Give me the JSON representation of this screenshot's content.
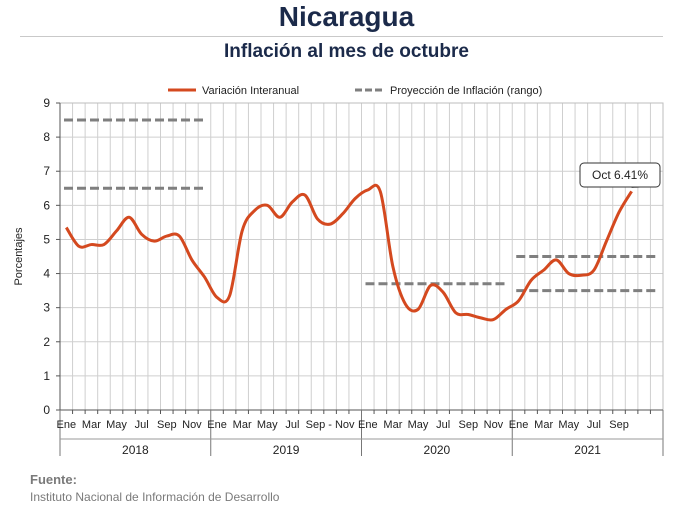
{
  "header": {
    "title": "Nicaragua",
    "subtitle": "Inflación al mes de octubre"
  },
  "source": {
    "label": "Fuente:",
    "text": "Instituto Nacional de Información de  Desarrollo"
  },
  "colors": {
    "series": "#d4491f",
    "projection": "#7f7f7f",
    "grid": "#cfcfcf",
    "axis": "#555555",
    "title": "#1b2a4a"
  },
  "chart_data": {
    "type": "line",
    "ylabel": "Porcentajes",
    "ylim": [
      0,
      9
    ],
    "yticks": [
      0,
      1,
      2,
      3,
      4,
      5,
      6,
      7,
      8,
      9
    ],
    "grid": true,
    "legend_position": "top",
    "x_tick_labels": [
      "Ene",
      "Mar",
      "May",
      "Jul",
      "Sep",
      "Nov",
      "Ene",
      "Mar",
      "May",
      "Jul",
      "Sep - Nov",
      "Ene",
      "Mar",
      "May",
      "Jul",
      "Sep",
      "Nov",
      "Ene",
      "Mar",
      "May",
      "Jul",
      "Sep"
    ],
    "years": [
      "2018",
      "2019",
      "2020",
      "2021"
    ],
    "series": [
      {
        "name": "Variación Interanual",
        "style": "solid",
        "values": [
          5.35,
          4.8,
          4.85,
          4.85,
          5.25,
          5.65,
          5.15,
          4.95,
          5.1,
          5.1,
          4.4,
          3.9,
          3.3,
          3.35,
          5.25,
          5.85,
          6.0,
          5.65,
          6.1,
          6.3,
          5.6,
          5.45,
          5.75,
          6.2,
          6.45,
          6.4,
          4.2,
          3.1,
          2.95,
          3.65,
          3.45,
          2.85,
          2.8,
          2.7,
          2.65,
          2.95,
          3.2,
          3.8,
          4.1,
          4.4,
          4.0,
          3.95,
          4.1,
          4.95,
          5.8,
          6.41
        ]
      },
      {
        "name": "Proyección de Inflación (rango)",
        "style": "dashed",
        "segments": [
          {
            "year": "2018",
            "value": 8.5
          },
          {
            "year": "2018",
            "value": 6.5
          },
          {
            "year": "2020",
            "value": 3.7
          },
          {
            "year": "2021",
            "value": 4.5
          },
          {
            "year": "2021",
            "value": 3.5
          }
        ]
      }
    ],
    "annotation": {
      "text": "Oct 6.41%",
      "value": 6.41
    }
  }
}
